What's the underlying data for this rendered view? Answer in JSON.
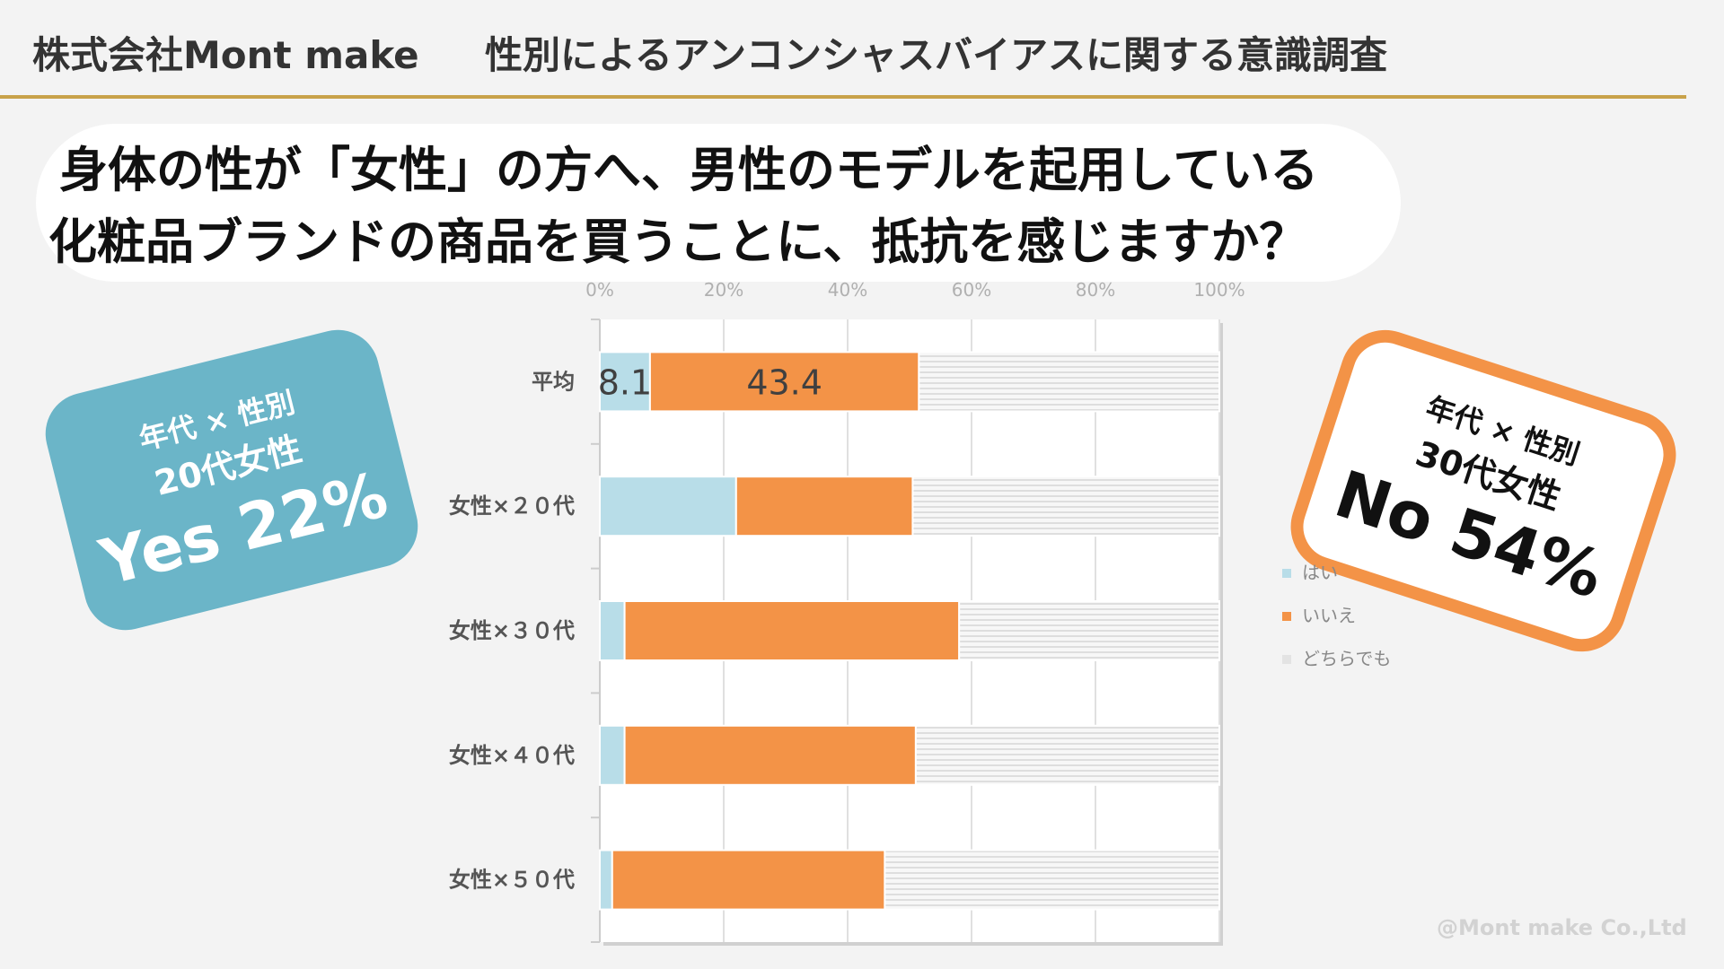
{
  "header": {
    "company": "株式会社Mont make",
    "title": "性別によるアンコンシャスバイアスに関する意識調査"
  },
  "question": {
    "line1": "身体の性が「女性」の方へ、男性のモデルを起用している",
    "line2": "化粧品ブランドの商品を買うことに、抵抗を感じますか？"
  },
  "callouts": {
    "left": {
      "line1": "年代 × 性別",
      "line2": "20代女性",
      "big": "Yes 22%"
    },
    "right": {
      "line1": "年代 × 性別",
      "line2": "30代女性",
      "big": "No 54%"
    }
  },
  "legend": [
    {
      "label": "はい",
      "color": "#b8dde8"
    },
    {
      "label": "いいえ",
      "color": "#f39347"
    },
    {
      "label": "どちらでも",
      "color": "#e3e3e3"
    }
  ],
  "credit": "@Mont make Co.,Ltd",
  "chart_data": {
    "type": "bar",
    "orientation": "horizontal",
    "stacked": true,
    "categories": [
      "平均",
      "女性×２０代",
      "女性×３０代",
      "女性×４０代",
      "女性×５０代"
    ],
    "series": [
      {
        "name": "はい",
        "values": [
          8.1,
          22,
          4,
          4,
          2
        ],
        "color": "#b8dde8"
      },
      {
        "name": "いいえ",
        "values": [
          43.4,
          28.5,
          54,
          47,
          44
        ],
        "color": "#f39347"
      },
      {
        "name": "どちらでも",
        "values": [
          48.5,
          49.5,
          42,
          49,
          54
        ],
        "color": "#e3e3e3"
      }
    ],
    "data_labels": [
      {
        "category": "平均",
        "series": "はい",
        "text": "8.1"
      },
      {
        "category": "平均",
        "series": "いいえ",
        "text": "43.4"
      }
    ],
    "xlim": [
      0,
      100
    ],
    "xticks": [
      "0%",
      "20%",
      "40%",
      "60%",
      "80%",
      "100%"
    ],
    "grid": true,
    "legend_position": "right"
  }
}
